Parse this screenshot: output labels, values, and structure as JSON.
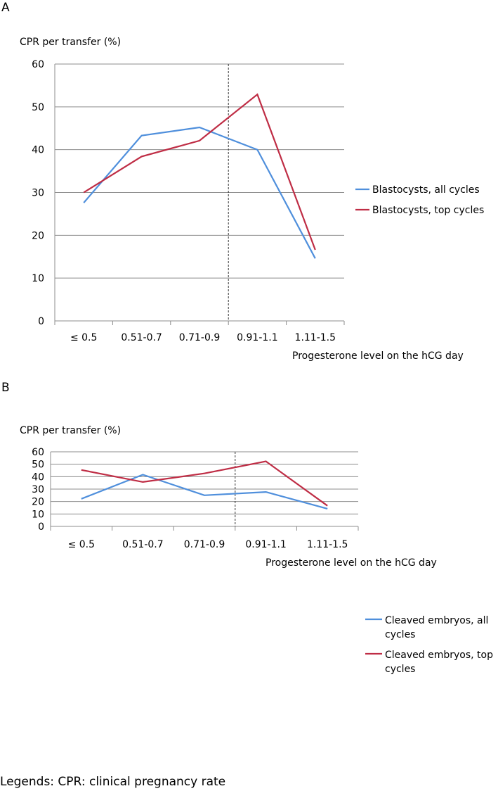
{
  "chart_data": [
    {
      "type": "line",
      "panel_label": "A",
      "ylabel": "CPR per transfer (%)",
      "xlabel": "Progesterone level on the hCG day",
      "categories": [
        "≤ 0.5",
        "0.51-0.7",
        "0.71-0.9",
        "0.91-1.1",
        "1.11-1.5"
      ],
      "ylim": [
        0,
        60
      ],
      "yticks": [
        0,
        10,
        20,
        30,
        40,
        50,
        60
      ],
      "grid": "horizontal",
      "legend": "right",
      "vline_between": [
        "0.71-0.9",
        "0.91-1.1"
      ],
      "series": [
        {
          "name": "Blastocysts, all cycles",
          "color": "#4f8fdc",
          "values": [
            27.6,
            43.3,
            45.2,
            40.0,
            14.6
          ]
        },
        {
          "name": "Blastocysts, top cycles",
          "color": "#bf2d45",
          "values": [
            30.0,
            38.4,
            42.1,
            52.9,
            16.6
          ]
        }
      ]
    },
    {
      "type": "line",
      "panel_label": "B",
      "ylabel": "CPR per transfer (%)",
      "xlabel": "Progesterone level on the hCG day",
      "categories": [
        "≤ 0.5",
        "0.51-0.7",
        "0.71-0.9",
        "0.91-1.1",
        "1.11-1.5"
      ],
      "ylim": [
        0,
        60
      ],
      "yticks": [
        0,
        10,
        20,
        30,
        40,
        50,
        60
      ],
      "grid": "horizontal",
      "legend": "right",
      "vline_between": [
        "0.71-0.9",
        "0.91-1.1"
      ],
      "series": [
        {
          "name": "Cleaved embryos, all cycles",
          "legend_lines": [
            "Cleaved embryos, all",
            "cycles"
          ],
          "color": "#4f8fdc",
          "values": [
            22.2,
            41.6,
            25.0,
            27.7,
            14.2
          ]
        },
        {
          "name": "Cleaved embryos, top cycles",
          "legend_lines": [
            "Cleaved embryos, top",
            "cycles"
          ],
          "color": "#bf2d45",
          "values": [
            45.4,
            35.7,
            42.6,
            52.3,
            16.6
          ]
        }
      ]
    }
  ],
  "caption": "Legends: CPR: clinical pregnancy rate"
}
